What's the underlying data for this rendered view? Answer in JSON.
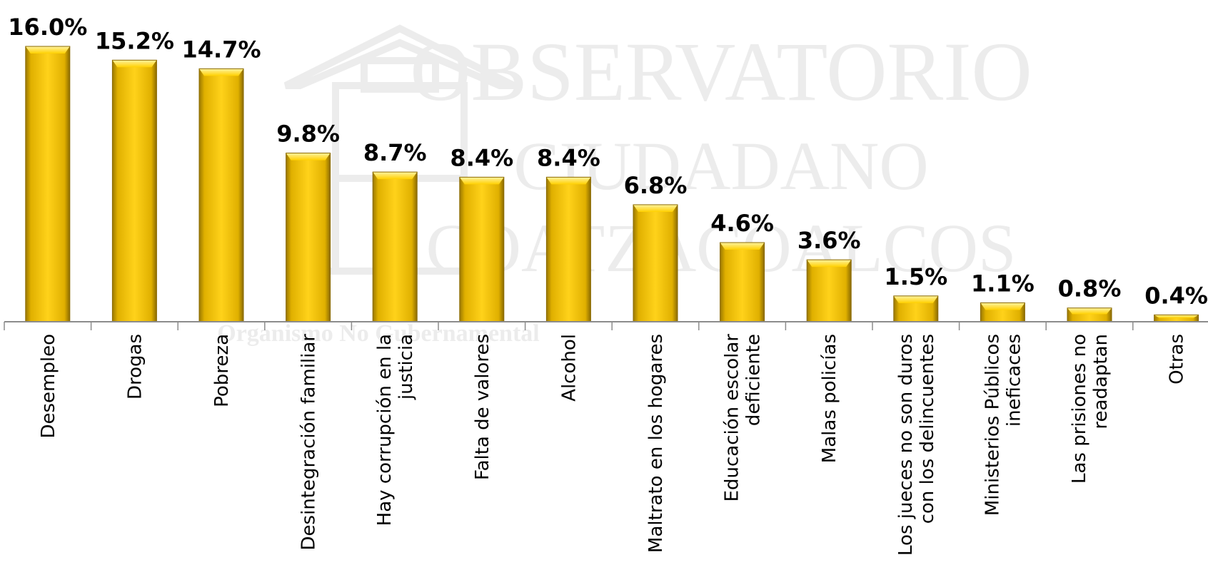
{
  "watermark": {
    "line1": "OBSERVATORIO",
    "line2": "CIUDADANO",
    "line3": "COATZACOALCOS",
    "subtitle": "Organismo No Gubernamental"
  },
  "colors": {
    "bar_fill": "#f2c200",
    "bar_light": "#ffe25a",
    "bar_dark": "#8a6a00",
    "axis": "#8c8c8c"
  },
  "chart_data": {
    "type": "bar",
    "title": "",
    "xlabel": "",
    "ylabel": "",
    "ylim": [
      0,
      16.0
    ],
    "grid": false,
    "legend": "none",
    "categories": [
      "Desempleo",
      "Drogas",
      "Pobreza",
      "Desintegración familiar",
      "Hay corrupción en la justicia",
      "Falta de valores",
      "Alcohol",
      "Maltrato en los hogares",
      "Educación escolar deficiente",
      "Malas policías",
      "Los jueces no son duros con los delincuentes",
      "Ministerios Públicos ineficaces",
      "Las prisiones no readaptan",
      "Otras"
    ],
    "label_lines": [
      [
        "Desempleo"
      ],
      [
        "Drogas"
      ],
      [
        "Pobreza"
      ],
      [
        "Desintegración familiar"
      ],
      [
        "Hay corrupción en la",
        "justicia"
      ],
      [
        "Falta de valores"
      ],
      [
        "Alcohol"
      ],
      [
        "Maltrato en los hogares"
      ],
      [
        "Educación escolar",
        "deficiente"
      ],
      [
        "Malas policías"
      ],
      [
        "Los jueces no son duros",
        "con los delincuentes"
      ],
      [
        "Ministerios Públicos",
        "ineficaces"
      ],
      [
        "Las prisiones no",
        "readaptan"
      ],
      [
        "Otras"
      ]
    ],
    "values": [
      16.0,
      15.2,
      14.7,
      9.8,
      8.7,
      8.4,
      8.4,
      6.8,
      4.6,
      3.6,
      1.5,
      1.1,
      0.8,
      0.4
    ],
    "value_labels": [
      "16.0%",
      "15.2%",
      "14.7%",
      "9.8%",
      "8.7%",
      "8.4%",
      "8.4%",
      "6.8%",
      "4.6%",
      "3.6%",
      "1.5%",
      "1.1%",
      "0.8%",
      "0.4%"
    ]
  }
}
